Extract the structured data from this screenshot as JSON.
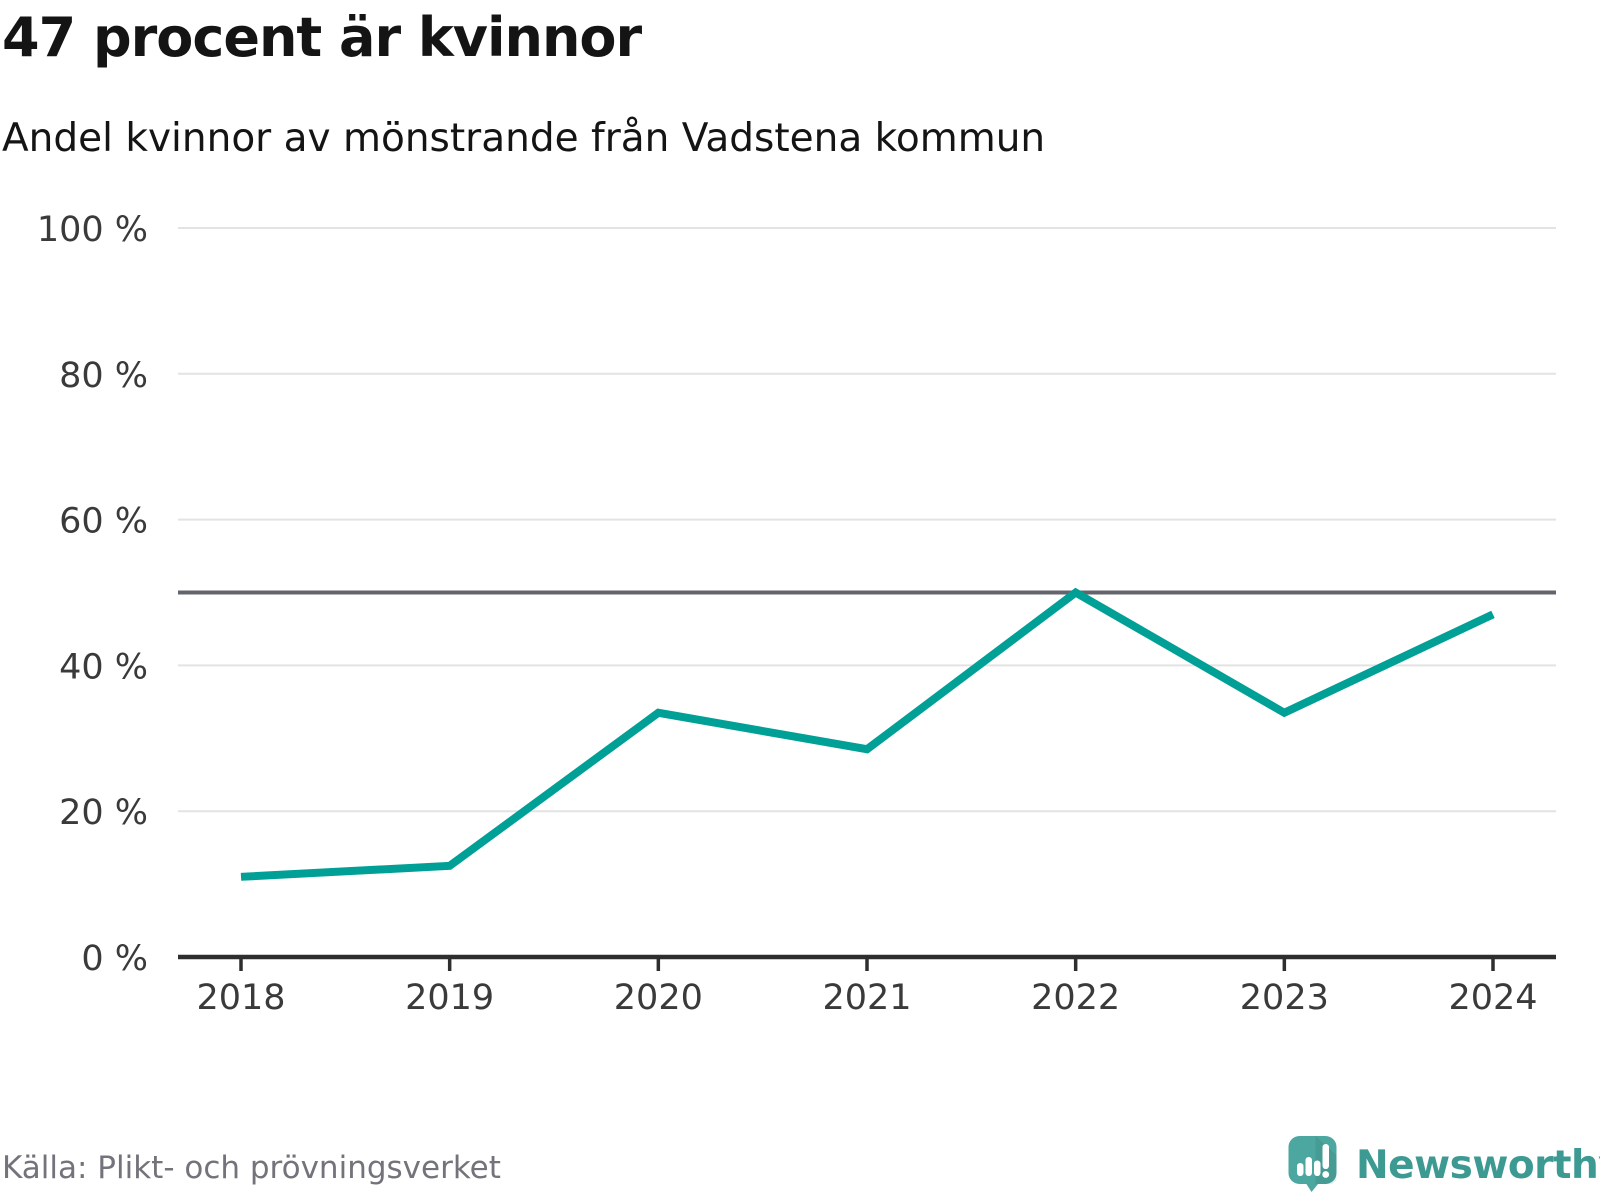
{
  "header": {
    "title": "47 procent är kvinnor",
    "subtitle": "Andel kvinnor av mönstrande från Vadstena kommun"
  },
  "chart_data": {
    "type": "line",
    "title": "47 procent är kvinnor",
    "subtitle": "Andel kvinnor av mönstrande från Vadstena kommun",
    "x": [
      "2018",
      "2019",
      "2020",
      "2021",
      "2022",
      "2023",
      "2024"
    ],
    "series": [
      {
        "name": "Andel kvinnor av mönstrande",
        "values": [
          11,
          12.5,
          33.5,
          28.5,
          50,
          33.5,
          47
        ]
      }
    ],
    "unit": "%",
    "ylim": [
      0,
      100
    ],
    "y_ticks": [
      {
        "value": 0,
        "label": "0 %"
      },
      {
        "value": 20,
        "label": "20 %"
      },
      {
        "value": 40,
        "label": "40 %"
      },
      {
        "value": 60,
        "label": "60 %"
      },
      {
        "value": 80,
        "label": "80 %"
      },
      {
        "value": 100,
        "label": "100 %"
      }
    ],
    "reference_line": {
      "value": 50
    },
    "grid": true,
    "legend": "none"
  },
  "footer": {
    "source": "Källa: Plikt- och prövningsverket",
    "brand": "Newsworthy"
  },
  "colors": {
    "line": "#00a096",
    "reference_line": "#63646c",
    "gridline": "#e3e3e3",
    "axis": "#2e2e2e",
    "tick_label": "#3a3a3a",
    "title_text": "#141414",
    "source_text": "#73737b",
    "brand_text": "#3c9a93",
    "logo_bubble": "#4ca7a0",
    "logo_bars": "#ffffff"
  }
}
